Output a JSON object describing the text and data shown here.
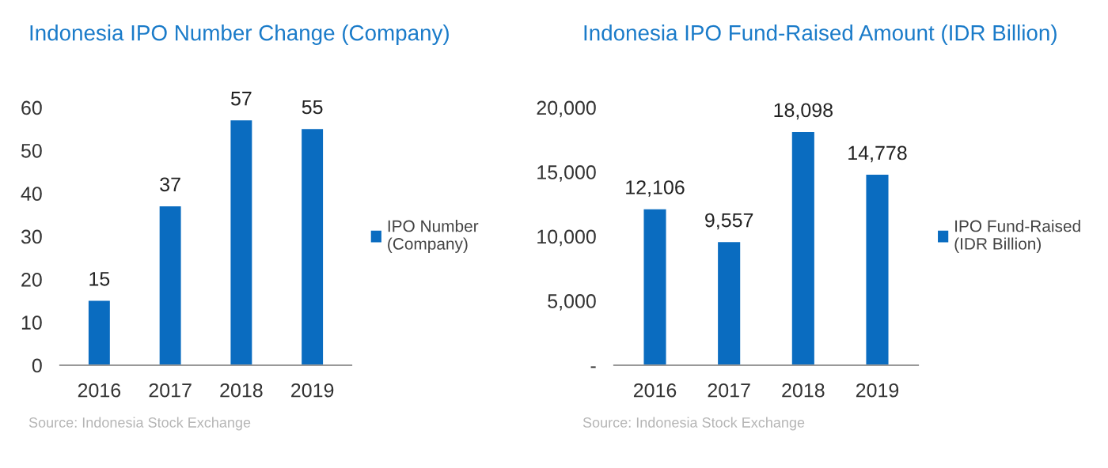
{
  "chart_data": [
    {
      "type": "bar",
      "title": "Indonesia IPO Number Change (Company)",
      "categories": [
        "2016",
        "2017",
        "2018",
        "2019"
      ],
      "series": [
        {
          "name": "IPO Number\n(Company)",
          "color": "#0a6cc0",
          "values": [
            15,
            37,
            57,
            55
          ]
        }
      ],
      "ylim": [
        0,
        60
      ],
      "yticks": [
        0,
        10,
        20,
        30,
        40,
        50,
        60
      ],
      "data_labels": true,
      "legend": "right",
      "grid": false,
      "annotations": [
        "Source: Indonesia Stock Exchange"
      ]
    },
    {
      "type": "bar",
      "title": "Indonesia IPO Fund-Raised Amount (IDR Billion)",
      "categories": [
        "2016",
        "2017",
        "2018",
        "2019"
      ],
      "series": [
        {
          "name": "IPO Fund-Raised\n(IDR Billion)",
          "color": "#0a6cc0",
          "values": [
            12106,
            9557,
            18098,
            14778
          ],
          "value_labels": [
            "12,106",
            "9,557",
            "18,098",
            "14,778"
          ]
        }
      ],
      "ylim": [
        0,
        20000
      ],
      "yticks": [
        {
          "value": 0,
          "label": "-"
        },
        {
          "value": 5000,
          "label": "5,000"
        },
        {
          "value": 10000,
          "label": "10,000"
        },
        {
          "value": 15000,
          "label": "15,000"
        },
        {
          "value": 20000,
          "label": "20,000"
        }
      ],
      "legend": "right",
      "grid": false,
      "annotations": [
        "Source: Indonesia Stock Exchange"
      ]
    }
  ]
}
